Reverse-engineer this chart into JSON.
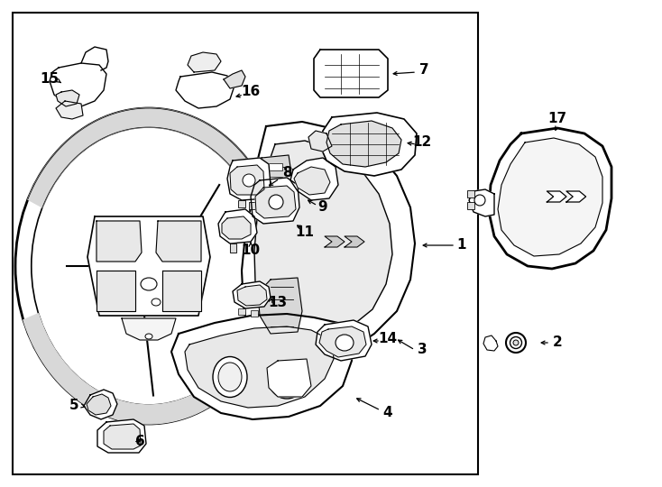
{
  "fig_width": 7.34,
  "fig_height": 5.4,
  "dpi": 100,
  "bg_color": "#ffffff",
  "lc": "#000000",
  "lw_main": 1.4,
  "lw_thin": 0.8,
  "lw_med": 1.0,
  "label_fontsize": 11,
  "label_fontweight": "bold"
}
